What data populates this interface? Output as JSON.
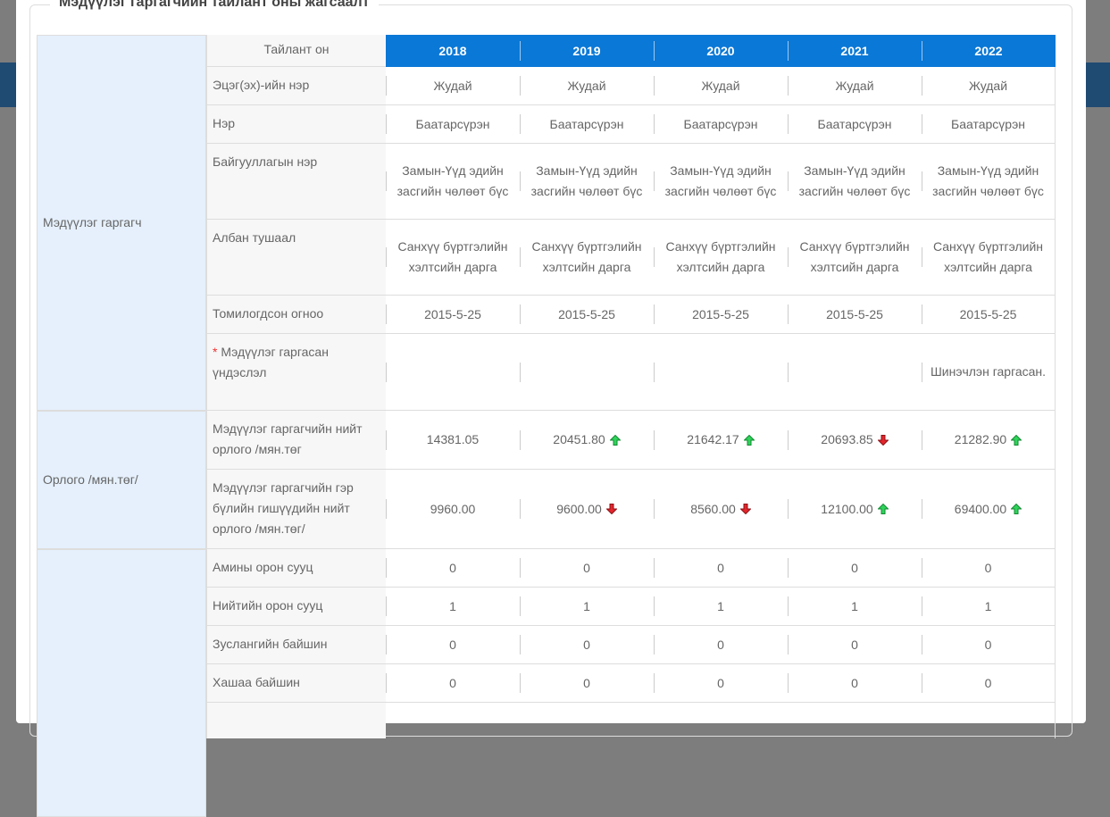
{
  "legend": "Мэдүүлэг гаргагчийн тайлант оны жагсаалт",
  "table": {
    "header": {
      "label": "Тайлант он",
      "years": [
        "2018",
        "2019",
        "2020",
        "2021",
        "2022"
      ]
    },
    "groups": [
      {
        "label": "Мэдүүлэг гаргагч",
        "rows": [
          {
            "label": "Эцэг(эх)-ийн нэр",
            "cells": [
              "Жудай",
              "Жудай",
              "Жудай",
              "Жудай",
              "Жудай"
            ]
          },
          {
            "label": "Нэр",
            "cells": [
              "Баатарсүрэн",
              "Баатарсүрэн",
              "Баатарсүрэн",
              "Баатарсүрэн",
              "Баатарсүрэн"
            ]
          },
          {
            "label": "Байгууллагын нэр",
            "cells": [
              "Замын-Үүд эдийн засгийн чөлөөт бүс",
              "Замын-Үүд эдийн засгийн чөлөөт бүс",
              "Замын-Үүд эдийн засгийн чөлөөт бүс",
              "Замын-Үүд эдийн засгийн чөлөөт бүс",
              "Замын-Үүд эдийн засгийн чөлөөт бүс"
            ]
          },
          {
            "label": "Албан тушаал",
            "cells": [
              "Санхүү бүртгэлийн хэлтсийн дарга",
              "Санхүү бүртгэлийн хэлтсийн дарга",
              "Санхүү бүртгэлийн хэлтсийн дарга",
              "Санхүү бүртгэлийн хэлтсийн дарга",
              "Санхүү бүртгэлийн хэлтсийн дарга"
            ]
          },
          {
            "label": "Томилогдсон огноо",
            "cells": [
              "2015-5-25",
              "2015-5-25",
              "2015-5-25",
              "2015-5-25",
              "2015-5-25"
            ]
          },
          {
            "mark": "*",
            "label": "Мэдүүлэг гаргасан үндэслэл",
            "cells": [
              null,
              null,
              null,
              null,
              "Шинэчлэн гаргасан."
            ]
          }
        ]
      },
      {
        "label": "Орлого /мян.төг/",
        "rows": [
          {
            "label": "Мэдүүлэг гаргагчийн нийт орлого /мян.төг",
            "cells": [
              "14381.05",
              "20451.80",
              "21642.17",
              "20693.85",
              "21282.90"
            ],
            "trends": [
              null,
              "up",
              "up",
              "down",
              "up"
            ]
          },
          {
            "label": "Мэдүүлэг гаргагчийн гэр бүлийн гишүүдийн нийт орлого /мян.төг/",
            "cells": [
              "9960.00",
              "9600.00",
              "8560.00",
              "12100.00",
              "69400.00"
            ],
            "trends": [
              null,
              "down",
              "down",
              "up",
              "up"
            ]
          }
        ]
      },
      {
        "rows": [
          {
            "label": "Амины орон сууц",
            "cells": [
              "0",
              "0",
              "0",
              "0",
              "0"
            ]
          },
          {
            "label": "Нийтийн орон сууц",
            "cells": [
              "1",
              "1",
              "1",
              "1",
              "1"
            ]
          },
          {
            "label": "Зуслангийн байшин",
            "cells": [
              "0",
              "0",
              "0",
              "0",
              "0"
            ]
          },
          {
            "label": "Хашаа байшин",
            "cells": [
              "0",
              "0",
              "0",
              "0",
              "0"
            ]
          }
        ]
      }
    ]
  }
}
